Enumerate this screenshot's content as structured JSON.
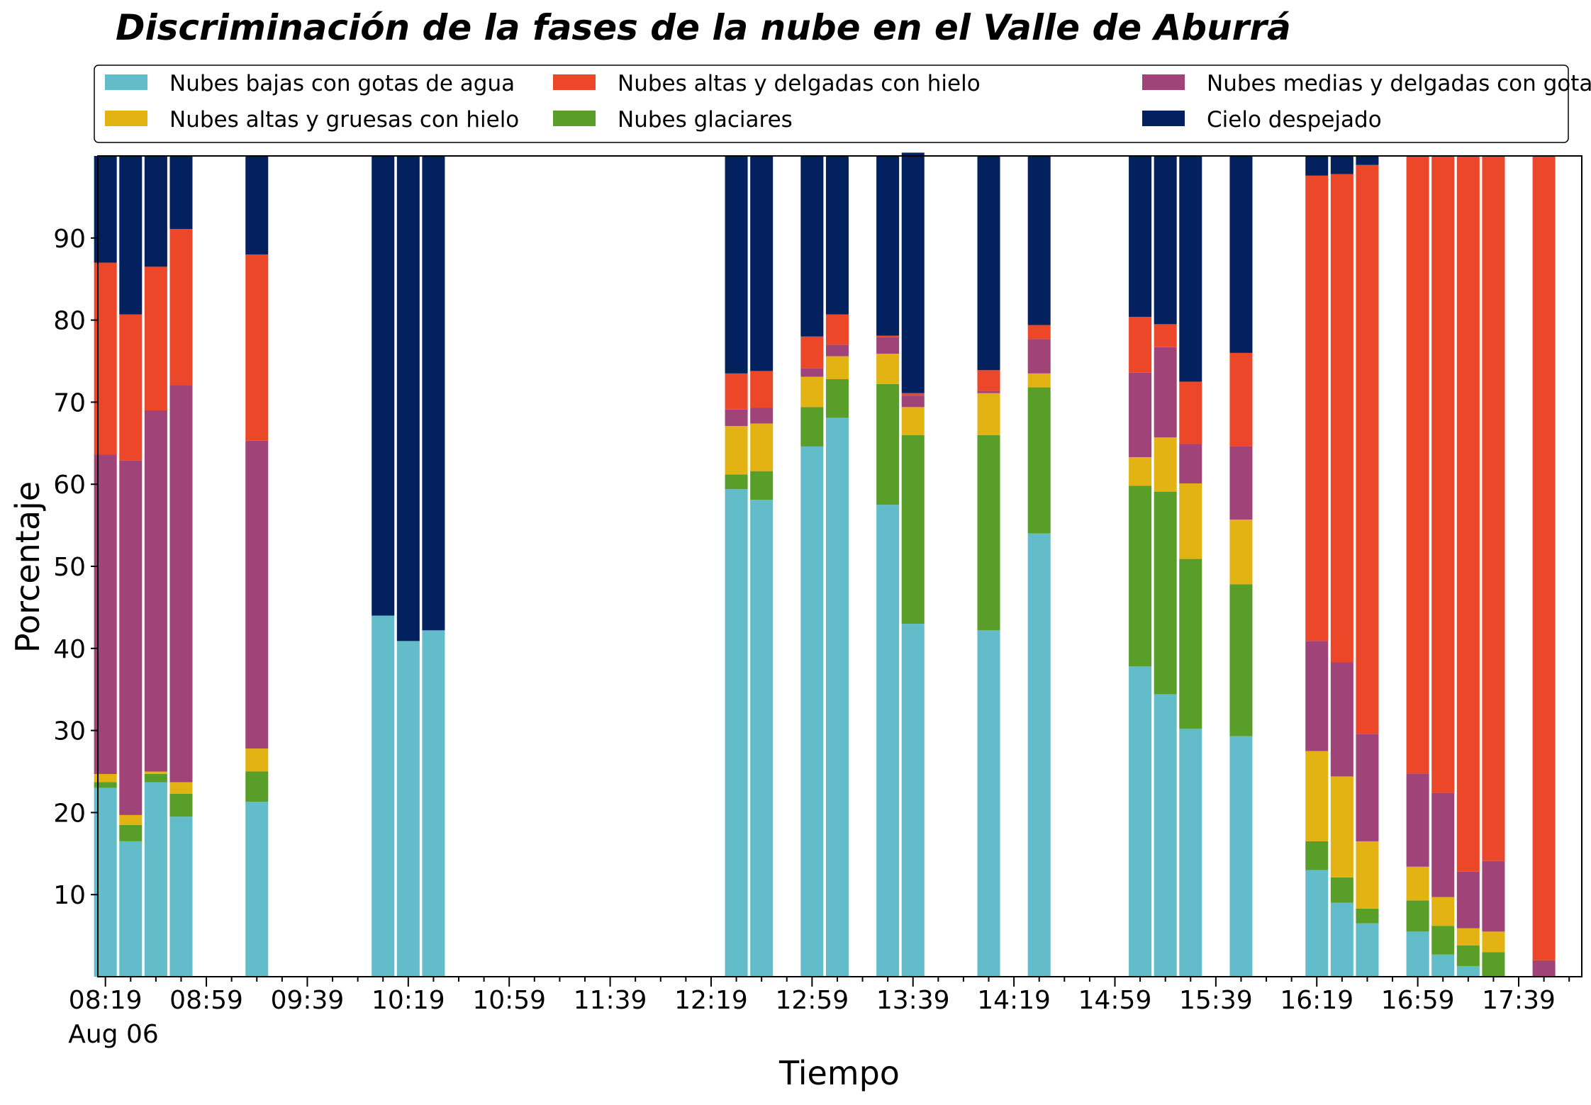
{
  "chart_data": {
    "type": "bar",
    "stacked": true,
    "title": "Discriminación de la fases de la nube en el Valle de Aburrá",
    "xlabel": "Tiempo",
    "ylabel": "Porcentaje",
    "x_tick_labels": [
      "08:19",
      "08:59",
      "09:39",
      "10:19",
      "10:59",
      "11:39",
      "12:19",
      "12:59",
      "13:39",
      "14:19",
      "14:59",
      "15:39",
      "16:19",
      "16:59",
      "17:39"
    ],
    "x_date_label": "Aug 06",
    "x_unit": "minutes since 08:19",
    "xlim": [
      -3,
      585
    ],
    "ylim": [
      0,
      100
    ],
    "y_ticks": [
      10,
      20,
      30,
      40,
      50,
      60,
      70,
      80,
      90
    ],
    "bar_width": 9,
    "legend_position": "top, above plot, 3 columns",
    "grid": false,
    "series": [
      {
        "name": "Nubes bajas con gotas de agua",
        "color": "#63bcc9"
      },
      {
        "name": "Nubes glaciares",
        "color": "#5a9e2a"
      },
      {
        "name": "Nubes altas y gruesas con hielo",
        "color": "#e3b314"
      },
      {
        "name": "Nubes medias y delgadas con gotas de agua",
        "color": "#a04379"
      },
      {
        "name": "Nubes altas y delgadas con hielo",
        "color": "#ed472a"
      },
      {
        "name": "Cielo despejado",
        "color": "#03215e"
      }
    ],
    "legend_order": [
      0,
      2,
      4,
      1,
      3,
      5
    ],
    "x": [
      0,
      10,
      20,
      30,
      60,
      110,
      120,
      130,
      250,
      260,
      280,
      290,
      310,
      320,
      350,
      370,
      410,
      420,
      430,
      450,
      480,
      490,
      500,
      520,
      530,
      540,
      550
    ],
    "values": {
      "Nubes bajas con gotas de agua": [
        23,
        16.5,
        23.7,
        19.5,
        21.3,
        44,
        40.9,
        42.2,
        59.4,
        58.1,
        64.6,
        68.1,
        57.5,
        43,
        42.2,
        54,
        37.8,
        34.4,
        30.2,
        29.3,
        13,
        9,
        6.5,
        5.5,
        2.7,
        1.3,
        0
      ],
      "Nubes glaciares": [
        0.7,
        2,
        1,
        2.8,
        3.7,
        0,
        0,
        0,
        1.8,
        3.5,
        4.8,
        4.7,
        14.7,
        23,
        23.8,
        17.8,
        22,
        24.7,
        20.7,
        18.5,
        3.5,
        3.1,
        1.8,
        3.8,
        3.5,
        2.5,
        3
      ],
      "Nubes altas y gruesas con hielo": [
        1,
        1.2,
        0.3,
        1.4,
        2.8,
        0,
        0,
        0,
        5.9,
        5.8,
        3.7,
        2.8,
        3.7,
        3.4,
        5.1,
        1.7,
        3.5,
        6.6,
        9.2,
        7.9,
        11,
        12.3,
        8.2,
        4.1,
        3.5,
        2.1,
        2.5
      ],
      "Nubes medias y delgadas con gotas de agua": [
        38.9,
        43.2,
        44,
        48.4,
        37.5,
        0,
        0,
        0,
        2,
        1.9,
        1,
        1.4,
        2,
        1.4,
        0.3,
        4.2,
        10.3,
        11,
        4.8,
        8.9,
        13.4,
        13.9,
        13.1,
        11.3,
        12.7,
        6.9,
        8.6
      ],
      "Nubes altas y delgadas con hielo": [
        23.4,
        17.8,
        17.5,
        19,
        22.7,
        0,
        0,
        0,
        4.4,
        4.5,
        3.9,
        3.7,
        0.2,
        0.3,
        2.5,
        1.7,
        6.8,
        2.8,
        7.6,
        11.4,
        56.7,
        59.5,
        69.3,
        75.3,
        77.6,
        87.2,
        85.9
      ],
      "Cielo despejado": [
        13,
        19.3,
        13.5,
        8.9,
        12,
        56,
        59.1,
        57.8,
        26.5,
        26.2,
        22,
        19.3,
        21.9,
        29.3,
        26.1,
        20.6,
        19.6,
        20.5,
        27.5,
        24,
        2.4,
        2.2,
        1.1,
        0,
        0,
        0,
        0
      ]
    },
    "extra_bars": [
      {
        "x": 570,
        "values": {
          "Nubes medias y delgadas con gotas de agua": 2,
          "Nubes altas y delgadas con hielo": 98
        }
      }
    ]
  }
}
